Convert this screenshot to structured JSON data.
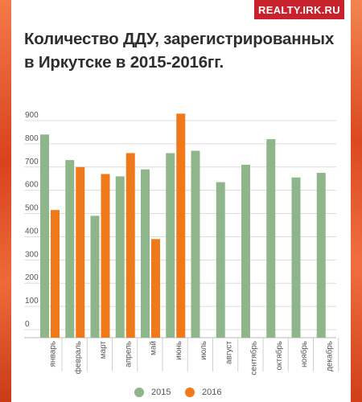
{
  "brand": {
    "label": "REALTY.IRK.RU"
  },
  "title": {
    "line1": "Количество ДДУ, зарегистрированных",
    "line2": "в Иркутске в 2015-2016гг."
  },
  "colors": {
    "series_2015": "#8fb58a",
    "series_2016": "#f07a1a",
    "grid": "#dcdcdc",
    "axis_text": "#555555"
  },
  "chart_data": {
    "type": "bar",
    "title": "Количество ДДУ, зарегистрированных в Иркутске в 2015-2016гг.",
    "categories": [
      "январь",
      "февраль",
      "март",
      "апрель",
      "май",
      "июнь",
      "июль",
      "август",
      "сентябрь",
      "октябрь",
      "ноябрь",
      "декабрь"
    ],
    "series": [
      {
        "name": "2015",
        "color": "#8fb58a",
        "values": [
          840,
          730,
          490,
          660,
          690,
          760,
          770,
          635,
          710,
          820,
          655,
          675
        ]
      },
      {
        "name": "2016",
        "color": "#f07a1a",
        "values": [
          515,
          700,
          670,
          760,
          390,
          930,
          null,
          null,
          null,
          null,
          null,
          null
        ]
      }
    ],
    "yticks": [
      0,
      100,
      200,
      300,
      400,
      500,
      600,
      700,
      800,
      900
    ],
    "ylim": [
      0,
      960
    ],
    "grid": true,
    "legend_position": "bottom"
  }
}
